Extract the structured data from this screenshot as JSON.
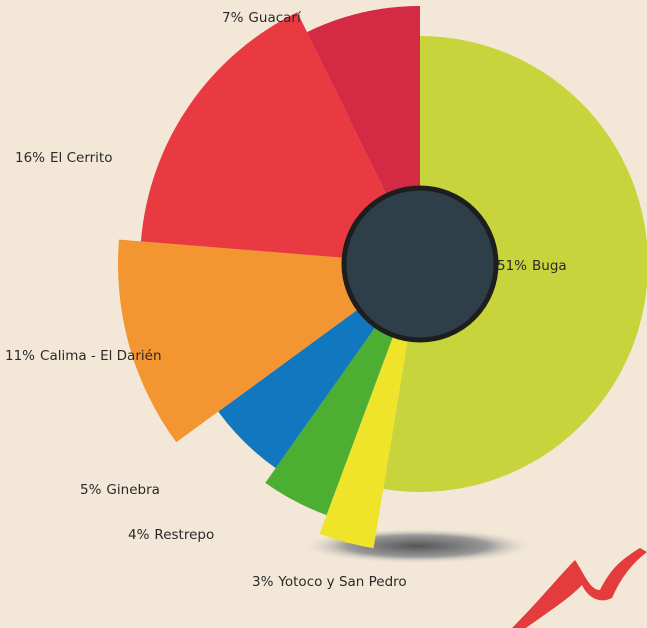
{
  "chart_data": {
    "type": "pie",
    "categories": [
      "Buga",
      "Yotoco y San Pedro",
      "Restrepo",
      "Ginebra",
      "Calima - El Darién",
      "El Cerrito",
      "Guacarí"
    ],
    "values": [
      51,
      3,
      4,
      5,
      11,
      16,
      7
    ],
    "value_labels": [
      "51%",
      "3%",
      "4%",
      "5%",
      "11%",
      "16%",
      "7%"
    ],
    "colors": [
      "#c8d43c",
      "#f0e42a",
      "#4caf32",
      "#1178c0",
      "#f39530",
      "#e83a40",
      "#d42a44"
    ]
  }
}
